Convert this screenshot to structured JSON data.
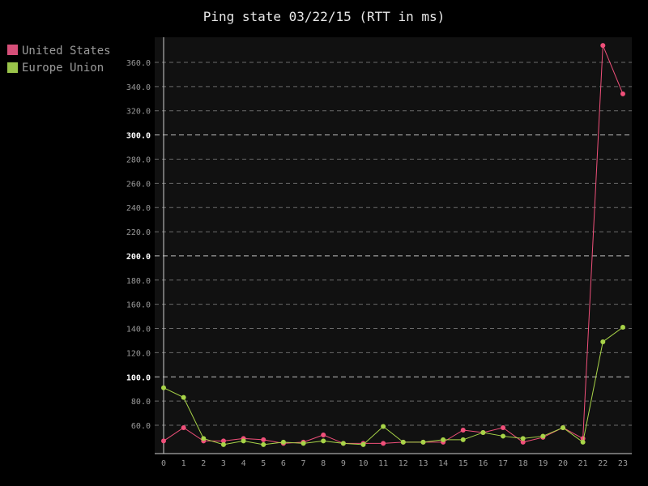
{
  "chart_data": {
    "type": "line",
    "title": "Ping state 03/22/15 (RTT in ms)",
    "xlabel": "",
    "ylabel": "",
    "x": [
      0,
      1,
      2,
      3,
      4,
      5,
      6,
      7,
      8,
      9,
      10,
      11,
      12,
      13,
      14,
      15,
      16,
      17,
      18,
      19,
      20,
      21,
      22,
      23
    ],
    "ylim": [
      40,
      375
    ],
    "yticks": [
      60,
      80,
      100,
      120,
      140,
      160,
      180,
      200,
      220,
      240,
      260,
      280,
      300,
      320,
      340,
      360
    ],
    "ytick_labels": [
      "60.0",
      "80.0",
      "100.0",
      "120.0",
      "140.0",
      "160.0",
      "180.0",
      "200.0",
      "220.0",
      "240.0",
      "260.0",
      "280.0",
      "300.0",
      "320.0",
      "340.0",
      "360.0"
    ],
    "major_yticks": [
      100,
      200,
      300
    ],
    "grid": true,
    "legend_position": "top-left",
    "series": [
      {
        "name": "United States",
        "color": "#f0507a",
        "values": [
          47,
          58,
          47,
          47,
          49,
          48,
          45,
          46,
          52,
          45,
          45,
          45,
          46,
          46,
          46,
          56,
          54,
          58,
          46,
          50,
          58,
          49,
          374,
          334
        ]
      },
      {
        "name": "Europe Union",
        "color": "#a8d448",
        "values": [
          91,
          83,
          49,
          44,
          47,
          44,
          46,
          45,
          47,
          45,
          44,
          59,
          46,
          46,
          48,
          48,
          54,
          51,
          49,
          51,
          58,
          46,
          129,
          141
        ]
      }
    ]
  },
  "legend_colors": {
    "united_states": "#d64f79",
    "europe_union": "#9ac44a"
  }
}
